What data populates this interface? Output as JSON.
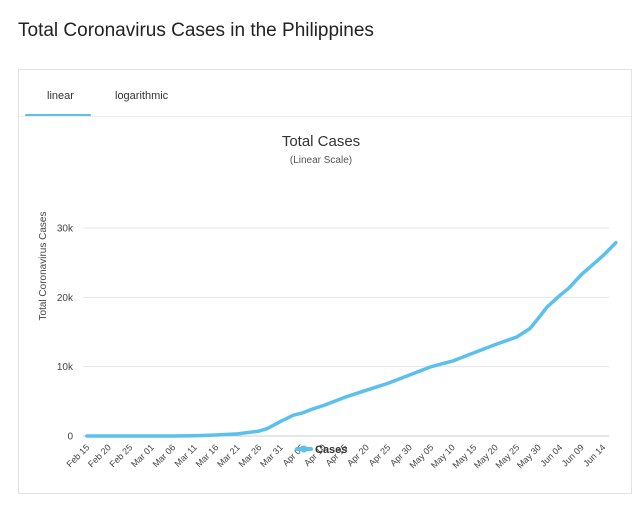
{
  "page": {
    "title": "Total Coronavirus Cases in the Philippines"
  },
  "tabs": [
    {
      "label": "linear",
      "active": true
    },
    {
      "label": "logarithmic",
      "active": false
    }
  ],
  "colors": {
    "series": "#5bc0eb",
    "accent": "#5bc0eb",
    "grid": "#e6e6e6"
  },
  "chart_data": {
    "type": "line",
    "title": "Total Cases",
    "subtitle": "(Linear Scale)",
    "ylabel": "Total Coronavirus Cases",
    "xlabel": "",
    "ylim": [
      0,
      30000
    ],
    "yticks": [
      0,
      10000,
      20000,
      30000
    ],
    "ytick_labels": [
      "0",
      "10k",
      "20k",
      "30k"
    ],
    "xtick_labels": [
      "Feb 15",
      "Feb 20",
      "Feb 25",
      "Mar 01",
      "Mar 06",
      "Mar 11",
      "Mar 16",
      "Mar 21",
      "Mar 26",
      "Mar 31",
      "Apr 05",
      "Apr 10",
      "Apr 15",
      "Apr 20",
      "Apr 25",
      "Apr 30",
      "May 05",
      "May 10",
      "May 15",
      "May 20",
      "May 25",
      "May 30",
      "Jun 04",
      "Jun 09",
      "Jun 14"
    ],
    "legend": {
      "position": "bottom-center",
      "entries": [
        "Cases"
      ]
    },
    "grid": true,
    "series": [
      {
        "name": "Cases",
        "x": [
          "Feb 15",
          "Feb 20",
          "Feb 25",
          "Mar 01",
          "Mar 06",
          "Mar 11",
          "Mar 16",
          "Mar 21",
          "Mar 26",
          "Mar 28",
          "Mar 31",
          "Apr 03",
          "Apr 05",
          "Apr 07",
          "Apr 10",
          "Apr 15",
          "Apr 20",
          "Apr 25",
          "Apr 30",
          "May 05",
          "May 10",
          "May 15",
          "May 20",
          "May 25",
          "May 28",
          "May 30",
          "Jun 01",
          "Jun 04",
          "Jun 06",
          "Jun 09",
          "Jun 14",
          "Jun 17"
        ],
        "values": [
          3,
          3,
          3,
          3,
          5,
          50,
          140,
          310,
          700,
          1100,
          2100,
          3000,
          3300,
          3800,
          4400,
          5600,
          6600,
          7600,
          8800,
          10000,
          10800,
          12000,
          13200,
          14300,
          15500,
          17000,
          18600,
          20300,
          21300,
          23300,
          26000,
          27900
        ]
      }
    ]
  }
}
